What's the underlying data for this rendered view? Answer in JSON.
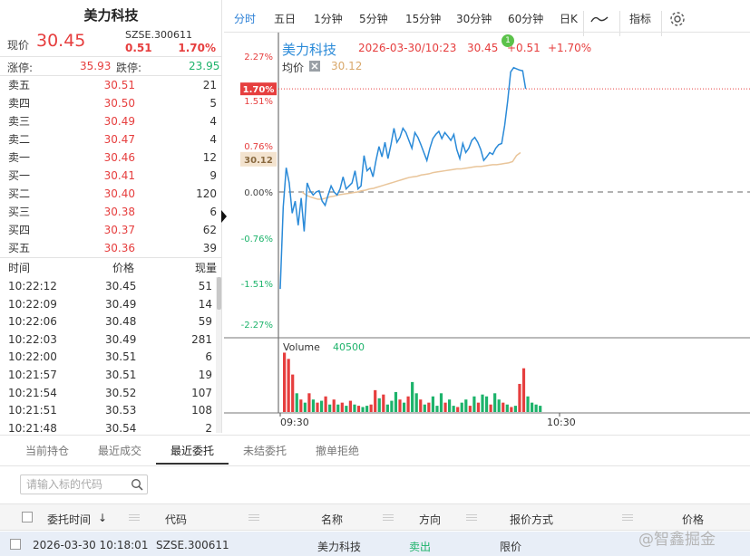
{
  "stock": {
    "name": "美力科技",
    "now_label": "现价",
    "price": "30.45",
    "code": "SZSE.300611",
    "change": "0.51",
    "change_pct": "1.70%",
    "limit_up_label": "涨停:",
    "limit_up": "35.93",
    "limit_down_label": "跌停:",
    "limit_down": "23.95"
  },
  "orderbook": [
    {
      "label": "卖五",
      "price": "30.51",
      "vol": "21"
    },
    {
      "label": "卖四",
      "price": "30.50",
      "vol": "5"
    },
    {
      "label": "卖三",
      "price": "30.49",
      "vol": "4"
    },
    {
      "label": "卖二",
      "price": "30.47",
      "vol": "4"
    },
    {
      "label": "卖一",
      "price": "30.46",
      "vol": "12"
    },
    {
      "label": "买一",
      "price": "30.41",
      "vol": "9"
    },
    {
      "label": "买二",
      "price": "30.40",
      "vol": "120"
    },
    {
      "label": "买三",
      "price": "30.38",
      "vol": "6"
    },
    {
      "label": "买四",
      "price": "30.37",
      "vol": "62"
    },
    {
      "label": "买五",
      "price": "30.36",
      "vol": "39"
    }
  ],
  "ticks": {
    "headers": {
      "time": "时间",
      "price": "价格",
      "vol": "现量"
    },
    "rows": [
      {
        "time": "10:22:12",
        "price": "30.45",
        "vol": "51"
      },
      {
        "time": "10:22:09",
        "price": "30.49",
        "vol": "14"
      },
      {
        "time": "10:22:06",
        "price": "30.48",
        "vol": "59"
      },
      {
        "time": "10:22:03",
        "price": "30.49",
        "vol": "281"
      },
      {
        "time": "10:22:00",
        "price": "30.51",
        "vol": "6"
      },
      {
        "time": "10:21:57",
        "price": "30.51",
        "vol": "19"
      },
      {
        "time": "10:21:54",
        "price": "30.52",
        "vol": "107"
      },
      {
        "time": "10:21:51",
        "price": "30.53",
        "vol": "108"
      },
      {
        "time": "10:21:48",
        "price": "30.54",
        "vol": "2"
      }
    ]
  },
  "tabs": {
    "items": [
      "分时",
      "五日",
      "1分钟",
      "5分钟",
      "15分钟",
      "30分钟",
      "60分钟",
      "日K"
    ],
    "indicator_label": "指标",
    "line_icon": "line-chart-icon",
    "gear_icon": "gear-icon"
  },
  "chart_data": {
    "type": "line",
    "title": "美力科技",
    "datetime": "2026-03-30/10:23",
    "price": "30.45",
    "change": "+0.51",
    "change_pct": "+1.70%",
    "badge": "1",
    "avg_label": "均价",
    "avg_value": "30.12",
    "current_pct_tag": "1.70%",
    "avg_tag": "30.12",
    "ylim_pct": [
      -2.27,
      2.27
    ],
    "y_ticks": [
      "2.27%",
      "1.51%",
      "0.76%",
      "0.00%",
      "-0.76%",
      "-1.51%",
      "-2.27%"
    ],
    "x_ticks": [
      "09:30",
      "10:30"
    ],
    "price_pct": [
      -1.6,
      -0.25,
      0.4,
      0.15,
      -0.35,
      -0.15,
      -0.55,
      -0.1,
      -0.65,
      0.15,
      0.02,
      -0.05,
      0.0,
      0.02,
      -0.15,
      -0.22,
      -0.05,
      0.1,
      0.0,
      -0.05,
      0.05,
      0.25,
      0.05,
      0.1,
      0.15,
      0.35,
      0.05,
      0.1,
      0.6,
      0.35,
      0.4,
      0.25,
      0.52,
      0.75,
      0.58,
      0.82,
      0.55,
      0.78,
      1.05,
      0.82,
      0.9,
      1.05,
      0.98,
      0.85,
      0.72,
      0.98,
      0.9,
      0.78,
      0.65,
      0.52,
      0.72,
      0.88,
      0.95,
      1.0,
      0.88,
      0.98,
      0.92,
      0.85,
      0.95,
      0.7,
      0.55,
      0.8,
      0.65,
      0.72,
      0.85,
      0.9,
      0.82,
      0.7,
      0.52,
      0.58,
      0.65,
      0.62,
      0.72,
      0.78,
      0.8,
      1.1,
      1.5,
      1.98,
      2.05,
      2.03,
      2.01,
      2.0,
      1.7
    ],
    "avg_pct": [
      0.0,
      -0.05,
      -0.08,
      -0.1,
      -0.12,
      -0.12,
      -0.1,
      -0.08,
      -0.07,
      -0.05,
      -0.04,
      -0.03,
      -0.02,
      -0.01,
      0.0,
      0.02,
      0.03,
      0.05,
      0.06,
      0.08,
      0.1,
      0.12,
      0.14,
      0.16,
      0.18,
      0.2,
      0.22,
      0.24,
      0.25,
      0.26,
      0.28,
      0.29,
      0.3,
      0.32,
      0.33,
      0.34,
      0.35,
      0.36,
      0.37,
      0.38,
      0.38,
      0.39,
      0.4,
      0.41,
      0.42,
      0.42,
      0.43,
      0.44,
      0.45,
      0.45,
      0.46,
      0.47,
      0.48,
      0.5,
      0.6,
      0.65
    ],
    "volume_label": "Volume",
    "volume_value": "40500",
    "volume": [
      {
        "v": 0.95,
        "c": "r"
      },
      {
        "v": 0.85,
        "c": "r"
      },
      {
        "v": 0.6,
        "c": "r"
      },
      {
        "v": 0.3,
        "c": "g"
      },
      {
        "v": 0.2,
        "c": "r"
      },
      {
        "v": 0.15,
        "c": "g"
      },
      {
        "v": 0.3,
        "c": "r"
      },
      {
        "v": 0.2,
        "c": "g"
      },
      {
        "v": 0.15,
        "c": "r"
      },
      {
        "v": 0.18,
        "c": "g"
      },
      {
        "v": 0.25,
        "c": "r"
      },
      {
        "v": 0.12,
        "c": "g"
      },
      {
        "v": 0.2,
        "c": "r"
      },
      {
        "v": 0.12,
        "c": "g"
      },
      {
        "v": 0.15,
        "c": "r"
      },
      {
        "v": 0.1,
        "c": "g"
      },
      {
        "v": 0.18,
        "c": "r"
      },
      {
        "v": 0.12,
        "c": "g"
      },
      {
        "v": 0.1,
        "c": "r"
      },
      {
        "v": 0.08,
        "c": "g"
      },
      {
        "v": 0.1,
        "c": "g"
      },
      {
        "v": 0.12,
        "c": "r"
      },
      {
        "v": 0.35,
        "c": "r"
      },
      {
        "v": 0.22,
        "c": "g"
      },
      {
        "v": 0.28,
        "c": "r"
      },
      {
        "v": 0.12,
        "c": "g"
      },
      {
        "v": 0.18,
        "c": "g"
      },
      {
        "v": 0.32,
        "c": "g"
      },
      {
        "v": 0.2,
        "c": "r"
      },
      {
        "v": 0.15,
        "c": "g"
      },
      {
        "v": 0.25,
        "c": "r"
      },
      {
        "v": 0.48,
        "c": "g"
      },
      {
        "v": 0.3,
        "c": "g"
      },
      {
        "v": 0.2,
        "c": "r"
      },
      {
        "v": 0.12,
        "c": "g"
      },
      {
        "v": 0.15,
        "c": "r"
      },
      {
        "v": 0.25,
        "c": "g"
      },
      {
        "v": 0.1,
        "c": "g"
      },
      {
        "v": 0.3,
        "c": "g"
      },
      {
        "v": 0.15,
        "c": "r"
      },
      {
        "v": 0.2,
        "c": "g"
      },
      {
        "v": 0.1,
        "c": "g"
      },
      {
        "v": 0.08,
        "c": "r"
      },
      {
        "v": 0.15,
        "c": "g"
      },
      {
        "v": 0.2,
        "c": "g"
      },
      {
        "v": 0.1,
        "c": "r"
      },
      {
        "v": 0.25,
        "c": "g"
      },
      {
        "v": 0.15,
        "c": "r"
      },
      {
        "v": 0.28,
        "c": "g"
      },
      {
        "v": 0.25,
        "c": "g"
      },
      {
        "v": 0.12,
        "c": "r"
      },
      {
        "v": 0.3,
        "c": "g"
      },
      {
        "v": 0.2,
        "c": "g"
      },
      {
        "v": 0.15,
        "c": "r"
      },
      {
        "v": 0.12,
        "c": "g"
      },
      {
        "v": 0.08,
        "c": "r"
      },
      {
        "v": 0.1,
        "c": "g"
      },
      {
        "v": 0.45,
        "c": "r"
      },
      {
        "v": 0.7,
        "c": "r"
      },
      {
        "v": 0.25,
        "c": "g"
      },
      {
        "v": 0.15,
        "c": "g"
      },
      {
        "v": 0.12,
        "c": "g"
      },
      {
        "v": 0.1,
        "c": "g"
      }
    ]
  },
  "bottom": {
    "tabs": [
      "当前持仓",
      "最近成交",
      "最近委托",
      "未结委托",
      "撤单拒绝"
    ],
    "active_index": 2,
    "search_placeholder": "请输入标的代码",
    "headers": {
      "time": "委托时间",
      "code": "代码",
      "name": "名称",
      "direction": "方向",
      "type": "报价方式",
      "price": "价格"
    },
    "row": {
      "time": "2026-03-30 10:18:01",
      "code": "SZSE.300611",
      "name": "美力科技",
      "direction": "卖出",
      "type": "限价",
      "price": ""
    }
  },
  "watermark": "@智鑫掘金",
  "colors": {
    "up": "#e63e3e",
    "down": "#1db36b",
    "line": "#2a8ad8",
    "avg": "#e9c59a",
    "tab_active": "#2a7fd6"
  }
}
